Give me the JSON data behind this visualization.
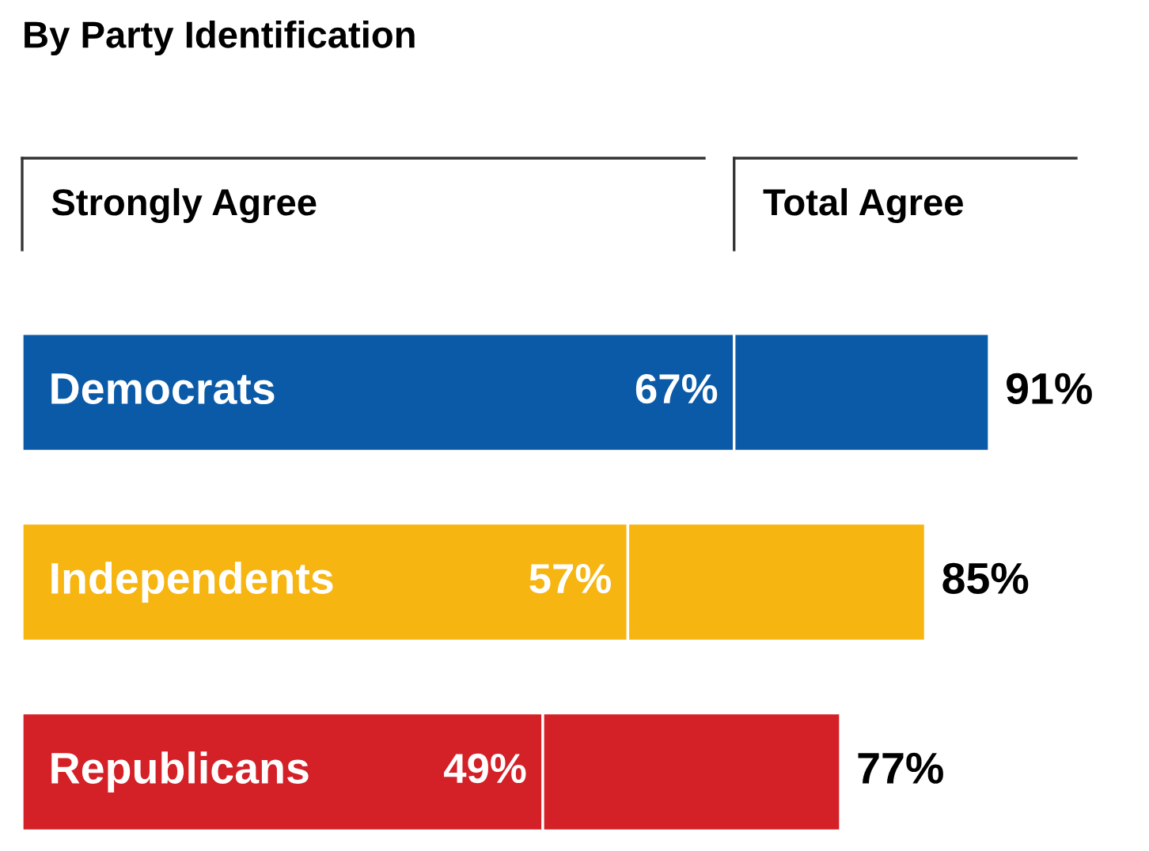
{
  "chart_data": {
    "type": "bar",
    "orientation": "horizontal",
    "stacked": true,
    "title": "By Party Identification",
    "categories": [
      "Democrats",
      "Independents",
      "Republicans"
    ],
    "series": [
      {
        "name": "Strongly Agree",
        "colors": [
          "#0a5aa8",
          "#f7b512",
          "#d42027"
        ],
        "values": [
          67,
          57,
          49
        ],
        "value_labels": [
          "67%",
          "57%",
          "49%"
        ]
      },
      {
        "name": "Total Agree",
        "colors": [
          "#0a5aa8",
          "#f7b512",
          "#d42027"
        ],
        "values": [
          24,
          28,
          28
        ]
      }
    ],
    "totals": [
      "91%",
      "85%",
      "77%"
    ],
    "legend": false
  }
}
